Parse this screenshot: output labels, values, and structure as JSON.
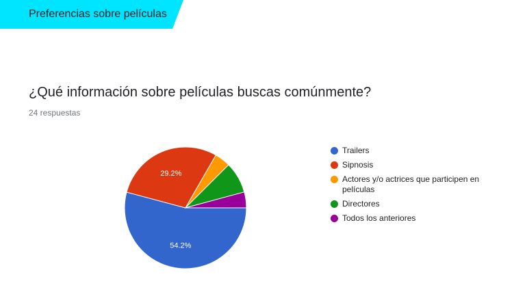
{
  "section": {
    "title": "Preferencias sobre películas",
    "color": "#00e5ff"
  },
  "question": {
    "title": "¿Qué información sobre películas buscas comúnmente?",
    "responses": "24 respuestas"
  },
  "chart_data": {
    "type": "pie",
    "categories": [
      "Trailers",
      "Sipnosis",
      "Actores y/o actrices que participen en películas",
      "Directores",
      "Todos los anteriores"
    ],
    "values": [
      54.2,
      29.2,
      4.2,
      8.3,
      4.2
    ],
    "labels": [
      "54.2%",
      "29.2%",
      "",
      "",
      ""
    ],
    "colors": [
      "#3366cc",
      "#dc3912",
      "#ff9900",
      "#109618",
      "#990099"
    ],
    "legend_position": "right"
  }
}
